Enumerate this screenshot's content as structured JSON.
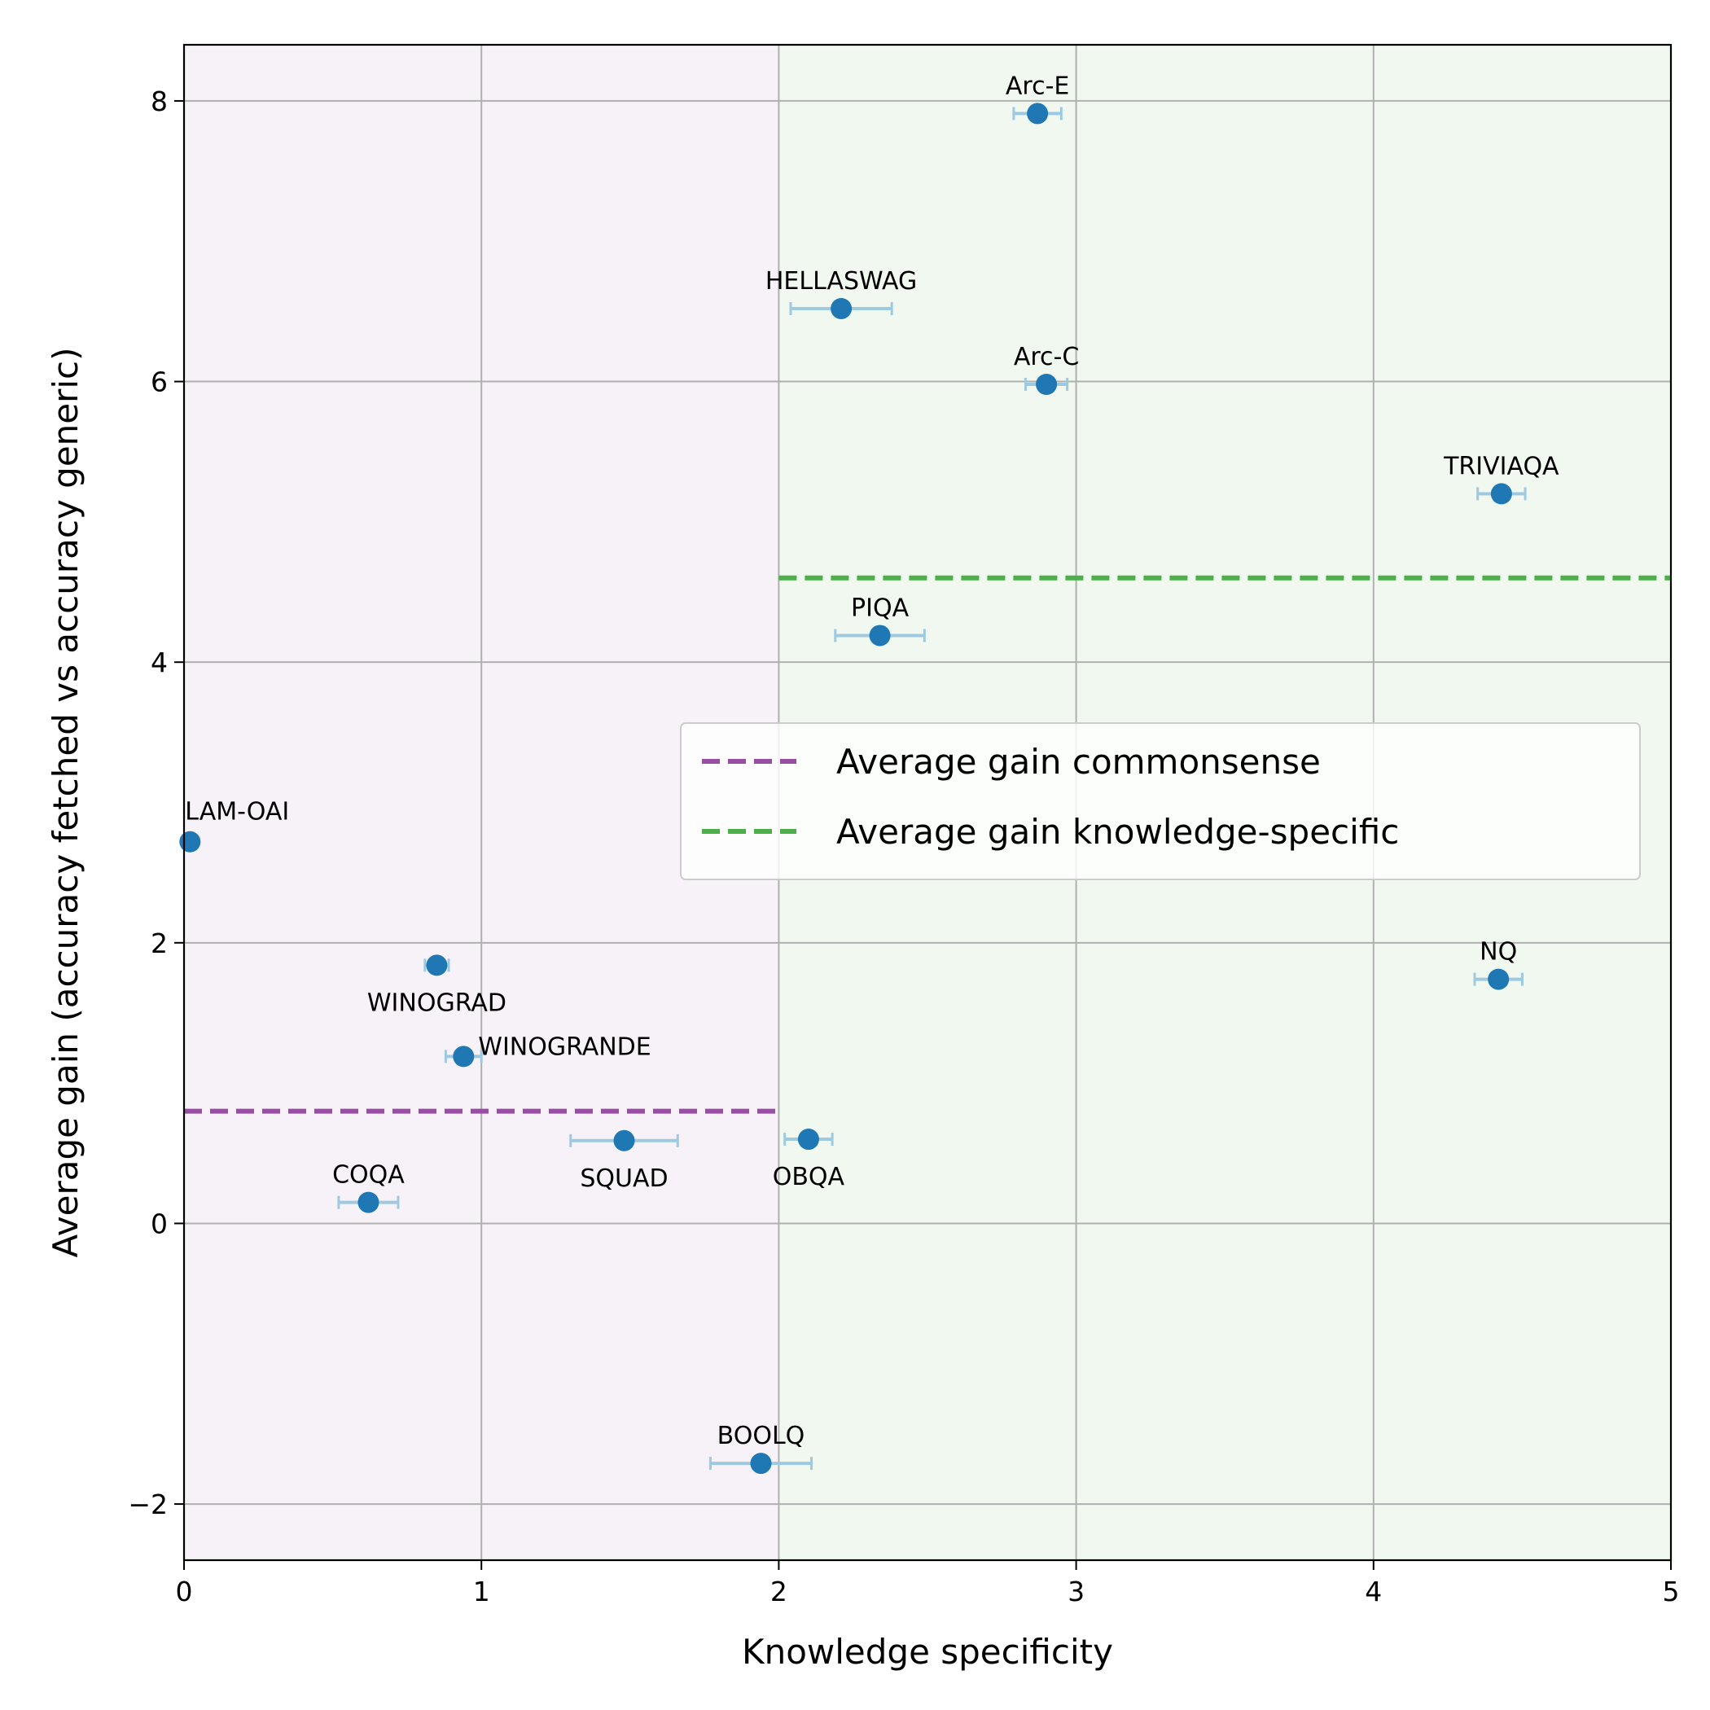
{
  "chart_data": {
    "type": "scatter",
    "title": "",
    "xlabel": "Knowledge specificity",
    "ylabel": "Average gain (accuracy fetched vs accuracy generic)",
    "xlim": [
      0,
      5
    ],
    "ylim": [
      -2.4,
      8.4
    ],
    "xticks": [
      0,
      1,
      2,
      3,
      4,
      5
    ],
    "yticks": [
      -2,
      0,
      2,
      4,
      6,
      8
    ],
    "xtick_labels": [
      "0",
      "1",
      "2",
      "3",
      "4",
      "5"
    ],
    "ytick_labels": [
      "−2",
      "0",
      "2",
      "4",
      "6",
      "8"
    ],
    "grid": true,
    "regions": [
      {
        "name": "commonsense",
        "x_range": [
          0,
          2
        ],
        "color": "#f7f2f8"
      },
      {
        "name": "knowledge-specific",
        "x_range": [
          2,
          5
        ],
        "color": "#f1f8f0"
      }
    ],
    "points": [
      {
        "label": "Arc-E",
        "x": 2.87,
        "y": 7.91,
        "xerr": 0.08,
        "label_pos": "above"
      },
      {
        "label": "HELLASWAG",
        "x": 2.21,
        "y": 6.52,
        "xerr": 0.17,
        "label_pos": "above"
      },
      {
        "label": "Arc-C",
        "x": 2.9,
        "y": 5.98,
        "xerr": 0.07,
        "label_pos": "above"
      },
      {
        "label": "TRIVIAQA",
        "x": 4.43,
        "y": 5.2,
        "xerr": 0.08,
        "label_pos": "above"
      },
      {
        "label": "PIQA",
        "x": 2.34,
        "y": 4.19,
        "xerr": 0.15,
        "label_pos": "above"
      },
      {
        "label": "LAM-OAI",
        "x": 0.02,
        "y": 2.72,
        "xerr": 0.0,
        "label_pos": "above-right"
      },
      {
        "label": "WINOGRAD",
        "x": 0.85,
        "y": 1.84,
        "xerr": 0.04,
        "label_pos": "below"
      },
      {
        "label": "NQ",
        "x": 4.42,
        "y": 1.74,
        "xerr": 0.08,
        "label_pos": "above"
      },
      {
        "label": "WINOGRANDE",
        "x": 0.94,
        "y": 1.19,
        "xerr": 0.06,
        "label_pos": "right"
      },
      {
        "label": "SQUAD",
        "x": 1.48,
        "y": 0.59,
        "xerr": 0.18,
        "label_pos": "below"
      },
      {
        "label": "OBQA",
        "x": 2.1,
        "y": 0.6,
        "xerr": 0.08,
        "label_pos": "below"
      },
      {
        "label": "COQA",
        "x": 0.62,
        "y": 0.15,
        "xerr": 0.1,
        "label_pos": "above"
      },
      {
        "label": "BOOLQ",
        "x": 1.94,
        "y": -1.71,
        "xerr": 0.17,
        "label_pos": "above"
      }
    ],
    "reference_lines": [
      {
        "name": "Average gain commonsense",
        "y": 0.8,
        "x_range": [
          0,
          2
        ],
        "color": "#984ea3",
        "style": "dashed"
      },
      {
        "name": "Average gain knowledge-specific",
        "y": 4.6,
        "x_range": [
          2,
          5
        ],
        "color": "#4daf4a",
        "style": "dashed"
      }
    ],
    "legend": {
      "placement": "center-right",
      "entries": [
        "Average gain commonsense",
        "Average gain knowledge-specific"
      ]
    },
    "marker_color": "#1f77b4",
    "errorbar_color": "#9ecae1"
  }
}
